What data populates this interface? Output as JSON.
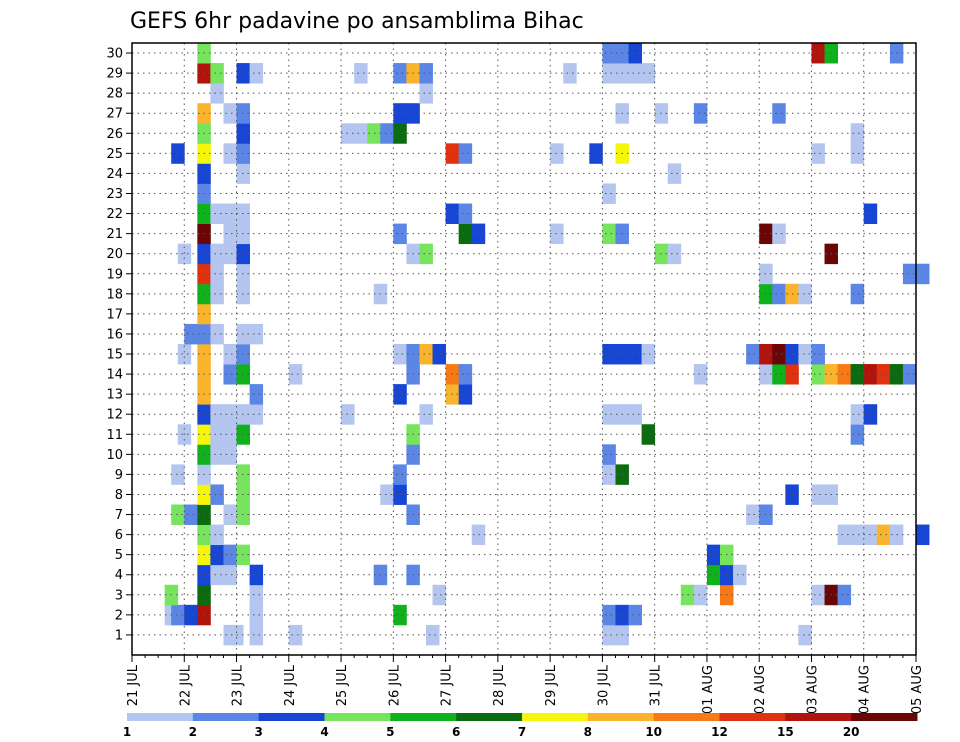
{
  "chart_data": {
    "type": "heatmap",
    "title": "GEFS 6hr padavine po ansamblima Bihac",
    "x_labels": [
      "21 JUL",
      "22 JUL",
      "23 JUL",
      "24 JUL",
      "25 JUL",
      "26 JUL",
      "27 JUL",
      "28 JUL",
      "29 JUL",
      "30 JUL",
      "31 JUL",
      "01 AUG",
      "02 AUG",
      "03 AUG",
      "04 AUG",
      "05 AUG"
    ],
    "y_labels": [
      "1",
      "2",
      "3",
      "4",
      "5",
      "6",
      "7",
      "8",
      "9",
      "10",
      "11",
      "12",
      "13",
      "14",
      "15",
      "16",
      "17",
      "18",
      "19",
      "20",
      "21",
      "22",
      "23",
      "24",
      "25",
      "26",
      "27",
      "28",
      "29",
      "30"
    ],
    "x_steps": 60,
    "steps_per_day": 4,
    "grid": true,
    "legend": {
      "position": "bottom",
      "labels": [
        "1",
        "2",
        "3",
        "4",
        "5",
        "6",
        "7",
        "8",
        "10",
        "12",
        "15",
        "20"
      ],
      "colors": [
        "#b4c6ef",
        "#5b86e6",
        "#1846d4",
        "#77e45e",
        "#10b21c",
        "#0b6b10",
        "#f6f60a",
        "#fab42c",
        "#f77a14",
        "#e0320f",
        "#b1140c",
        "#6b0606"
      ]
    },
    "cells": [
      [
        0,
        "22JUL",
        3,
        0
      ],
      [
        0,
        "22JUL",
        3.5,
        0
      ],
      [
        0,
        "23JUL",
        1,
        0
      ],
      [
        0,
        "23JUL",
        4,
        0
      ],
      [
        0,
        "26JUL",
        2.5,
        0
      ],
      [
        0,
        "30JUL",
        0,
        0
      ],
      [
        0,
        "30JUL",
        1,
        0
      ],
      [
        0,
        "02AUG",
        3,
        0
      ],
      [
        1,
        "21JUL",
        2.5,
        0
      ],
      [
        1,
        "21JUL",
        3,
        1
      ],
      [
        1,
        "22JUL",
        0,
        2
      ],
      [
        1,
        "22JUL",
        1,
        10
      ],
      [
        1,
        "23JUL",
        1,
        0
      ],
      [
        1,
        "26JUL",
        0,
        4
      ],
      [
        1,
        "30JUL",
        0,
        1
      ],
      [
        1,
        "30JUL",
        1,
        2
      ],
      [
        1,
        "30JUL",
        2,
        1
      ],
      [
        2,
        "21JUL",
        2.5,
        3
      ],
      [
        2,
        "22JUL",
        1,
        5
      ],
      [
        2,
        "23JUL",
        1,
        0
      ],
      [
        2,
        "26JUL",
        3,
        0
      ],
      [
        2,
        "31JUL",
        2,
        3
      ],
      [
        2,
        "31JUL",
        3,
        0
      ],
      [
        2,
        "01AUG",
        1,
        8
      ],
      [
        2,
        "03AUG",
        0,
        0
      ],
      [
        2,
        "03AUG",
        1,
        11
      ],
      [
        2,
        "03AUG",
        2,
        1
      ],
      [
        3,
        "22JUL",
        1,
        2
      ],
      [
        3,
        "22JUL",
        2,
        0
      ],
      [
        3,
        "22JUL",
        3,
        0
      ],
      [
        3,
        "23JUL",
        1,
        2
      ],
      [
        3,
        "25JUL",
        2.5,
        1
      ],
      [
        3,
        "26JUL",
        1,
        1
      ],
      [
        3,
        "01AUG",
        0,
        4
      ],
      [
        3,
        "01AUG",
        1,
        2
      ],
      [
        3,
        "01AUG",
        2,
        0
      ],
      [
        4,
        "22JUL",
        1,
        6
      ],
      [
        4,
        "22JUL",
        2,
        2
      ],
      [
        4,
        "22JUL",
        3,
        1
      ],
      [
        4,
        "23JUL",
        0,
        3
      ],
      [
        4,
        "01AUG",
        0,
        2
      ],
      [
        4,
        "01AUG",
        1,
        3
      ],
      [
        5,
        "22JUL",
        1,
        3
      ],
      [
        5,
        "22JUL",
        2,
        0
      ],
      [
        5,
        "27JUL",
        2,
        0
      ],
      [
        5,
        "03AUG",
        2,
        0
      ],
      [
        5,
        "03AUG",
        3,
        0
      ],
      [
        5,
        "03AUG",
        4,
        0
      ],
      [
        5,
        "03AUG",
        5,
        7
      ],
      [
        5,
        "03AUG",
        6,
        0
      ],
      [
        5,
        "05AUG",
        0,
        2
      ],
      [
        6,
        "21JUL",
        3,
        3
      ],
      [
        6,
        "22JUL",
        0,
        1
      ],
      [
        6,
        "22JUL",
        1,
        5
      ],
      [
        6,
        "22JUL",
        3,
        0
      ],
      [
        6,
        "23JUL",
        0,
        3
      ],
      [
        6,
        "26JUL",
        1,
        1
      ],
      [
        6,
        "01AUG",
        3,
        0
      ],
      [
        6,
        "02AUG",
        0,
        1
      ],
      [
        7,
        "22JUL",
        1,
        6
      ],
      [
        7,
        "22JUL",
        2,
        1
      ],
      [
        7,
        "22JUL",
        4,
        0
      ],
      [
        7,
        "23JUL",
        0,
        3
      ],
      [
        7,
        "25JUL",
        3,
        0
      ],
      [
        7,
        "25JUL",
        4,
        0
      ],
      [
        7,
        "26JUL",
        0,
        2
      ],
      [
        7,
        "02AUG",
        2,
        2
      ],
      [
        7,
        "03AUG",
        0,
        0
      ],
      [
        7,
        "03AUG",
        1,
        0
      ],
      [
        8,
        "21JUL",
        3,
        0
      ],
      [
        8,
        "22JUL",
        1,
        0
      ],
      [
        8,
        "23JUL",
        0,
        3
      ],
      [
        8,
        "26JUL",
        0,
        1
      ],
      [
        8,
        "30JUL",
        0,
        0
      ],
      [
        8,
        "30JUL",
        1,
        5
      ],
      [
        9,
        "22JUL",
        1,
        4
      ],
      [
        9,
        "22JUL",
        2,
        0
      ],
      [
        9,
        "22JUL",
        3,
        0
      ],
      [
        9,
        "26JUL",
        1,
        1
      ],
      [
        9,
        "30JUL",
        0,
        1
      ],
      [
        10,
        "21JUL",
        3.5,
        0
      ],
      [
        10,
        "22JUL",
        1,
        6
      ],
      [
        10,
        "22JUL",
        2,
        0
      ],
      [
        10,
        "22JUL",
        3,
        0
      ],
      [
        10,
        "23JUL",
        0,
        4
      ],
      [
        10,
        "26JUL",
        1,
        3
      ],
      [
        10,
        "30JUL",
        3,
        5
      ],
      [
        10,
        "03AUG",
        3,
        1
      ],
      [
        11,
        "22JUL",
        1,
        2
      ],
      [
        11,
        "22JUL",
        2,
        0
      ],
      [
        11,
        "22JUL",
        3,
        0
      ],
      [
        11,
        "23JUL",
        0,
        0
      ],
      [
        11,
        "23JUL",
        1,
        0
      ],
      [
        11,
        "25JUL",
        0,
        0
      ],
      [
        11,
        "26JUL",
        2,
        0
      ],
      [
        11,
        "30JUL",
        0,
        0
      ],
      [
        11,
        "30JUL",
        1,
        0
      ],
      [
        11,
        "30JUL",
        2,
        0
      ],
      [
        11,
        "03AUG",
        3,
        0
      ],
      [
        11,
        "04AUG",
        0,
        2
      ],
      [
        12,
        "22JUL",
        1,
        7
      ],
      [
        12,
        "23JUL",
        1,
        1
      ],
      [
        12,
        "26JUL",
        0,
        2
      ],
      [
        12,
        "27JUL",
        0,
        7
      ],
      [
        12,
        "27JUL",
        1,
        2
      ],
      [
        13,
        "22JUL",
        1,
        7
      ],
      [
        13,
        "22JUL",
        3,
        1
      ],
      [
        13,
        "22JUL",
        4,
        1
      ],
      [
        13,
        "23JUL",
        0,
        4
      ],
      [
        13,
        "24JUL",
        0,
        0
      ],
      [
        13,
        "26JUL",
        1,
        1
      ],
      [
        13,
        "27JUL",
        0,
        8
      ],
      [
        13,
        "27JUL",
        1,
        1
      ],
      [
        13,
        "31JUL",
        3,
        0
      ],
      [
        13,
        "02AUG",
        0,
        0
      ],
      [
        13,
        "02AUG",
        1,
        4
      ],
      [
        13,
        "02AUG",
        2,
        9
      ],
      [
        13,
        "03AUG",
        0,
        3
      ],
      [
        13,
        "03AUG",
        1,
        7
      ],
      [
        13,
        "03AUG",
        2,
        8
      ],
      [
        13,
        "03AUG",
        3,
        5
      ],
      [
        13,
        "04AUG",
        0,
        10
      ],
      [
        13,
        "04AUG",
        1,
        9
      ],
      [
        13,
        "04AUG",
        2,
        5
      ],
      [
        13,
        "04AUG",
        3,
        1
      ],
      [
        14,
        "21JUL",
        3.5,
        0
      ],
      [
        14,
        "22JUL",
        1,
        7
      ],
      [
        14,
        "22JUL",
        3,
        0
      ],
      [
        14,
        "23JUL",
        0,
        1
      ],
      [
        14,
        "26JUL",
        0,
        0
      ],
      [
        14,
        "26JUL",
        1,
        1
      ],
      [
        14,
        "26JUL",
        2,
        7
      ],
      [
        14,
        "26JUL",
        3,
        2
      ],
      [
        14,
        "30JUL",
        0,
        2
      ],
      [
        14,
        "30JUL",
        1,
        2
      ],
      [
        14,
        "30JUL",
        2,
        2
      ],
      [
        14,
        "30JUL",
        3,
        0
      ],
      [
        14,
        "01AUG",
        3,
        1
      ],
      [
        14,
        "02AUG",
        0,
        10
      ],
      [
        14,
        "02AUG",
        1,
        11
      ],
      [
        14,
        "02AUG",
        2,
        2
      ],
      [
        14,
        "02AUG",
        3,
        0
      ],
      [
        14,
        "02AUG",
        4,
        1
      ],
      [
        15,
        "22JUL",
        0,
        1
      ],
      [
        15,
        "22JUL",
        1,
        1
      ],
      [
        15,
        "22JUL",
        2,
        0
      ],
      [
        15,
        "23JUL",
        0,
        0
      ],
      [
        15,
        "23JUL",
        1,
        0
      ],
      [
        16,
        "22JUL",
        1,
        7
      ],
      [
        17,
        "22JUL",
        1,
        4
      ],
      [
        17,
        "22JUL",
        2,
        0
      ],
      [
        17,
        "23JUL",
        0,
        0
      ],
      [
        17,
        "25JUL",
        2.5,
        0
      ],
      [
        17,
        "02AUG",
        0,
        4
      ],
      [
        17,
        "02AUG",
        1,
        1
      ],
      [
        17,
        "02AUG",
        2,
        7
      ],
      [
        17,
        "02AUG",
        3,
        0
      ],
      [
        17,
        "03AUG",
        3,
        1
      ],
      [
        18,
        "22JUL",
        1,
        9
      ],
      [
        18,
        "22JUL",
        2,
        0
      ],
      [
        18,
        "23JUL",
        0,
        0
      ],
      [
        18,
        "02AUG",
        0,
        0
      ],
      [
        18,
        "04AUG",
        3,
        1
      ],
      [
        18,
        "05AUG",
        0,
        1
      ],
      [
        19,
        "21JUL",
        3.5,
        0
      ],
      [
        19,
        "22JUL",
        1,
        2
      ],
      [
        19,
        "22JUL",
        2,
        0
      ],
      [
        19,
        "22JUL",
        3,
        0
      ],
      [
        19,
        "23JUL",
        0,
        2
      ],
      [
        19,
        "26JUL",
        1,
        0
      ],
      [
        19,
        "26JUL",
        2,
        3
      ],
      [
        19,
        "31JUL",
        0,
        3
      ],
      [
        19,
        "31JUL",
        1,
        0
      ],
      [
        19,
        "03AUG",
        1,
        11
      ],
      [
        20,
        "22JUL",
        1,
        11
      ],
      [
        20,
        "22JUL",
        3,
        0
      ],
      [
        20,
        "23JUL",
        0,
        0
      ],
      [
        20,
        "26JUL",
        0,
        1
      ],
      [
        20,
        "27JUL",
        1,
        5
      ],
      [
        20,
        "27JUL",
        2,
        2
      ],
      [
        20,
        "29JUL",
        0,
        0
      ],
      [
        20,
        "30JUL",
        0,
        3
      ],
      [
        20,
        "30JUL",
        1,
        1
      ],
      [
        20,
        "02AUG",
        0,
        11
      ],
      [
        20,
        "02AUG",
        1,
        0
      ],
      [
        21,
        "22JUL",
        1,
        4
      ],
      [
        21,
        "22JUL",
        2,
        0
      ],
      [
        21,
        "22JUL",
        3,
        0
      ],
      [
        21,
        "23JUL",
        0,
        0
      ],
      [
        21,
        "27JUL",
        0,
        2
      ],
      [
        21,
        "27JUL",
        1,
        1
      ],
      [
        21,
        "04AUG",
        0,
        2
      ],
      [
        22,
        "22JUL",
        1,
        1
      ],
      [
        22,
        "30JUL",
        0,
        0
      ],
      [
        23,
        "22JUL",
        1,
        2
      ],
      [
        23,
        "23JUL",
        0,
        0
      ],
      [
        23,
        "31JUL",
        1,
        0
      ],
      [
        24,
        "21JUL",
        3,
        2
      ],
      [
        24,
        "22JUL",
        1,
        6
      ],
      [
        24,
        "22JUL",
        3,
        0
      ],
      [
        24,
        "23JUL",
        0,
        1
      ],
      [
        24,
        "27JUL",
        0,
        9
      ],
      [
        24,
        "27JUL",
        1,
        1
      ],
      [
        24,
        "29JUL",
        0,
        0
      ],
      [
        24,
        "29JUL",
        3,
        2
      ],
      [
        24,
        "30JUL",
        1,
        6
      ],
      [
        24,
        "03AUG",
        0,
        0
      ],
      [
        24,
        "03AUG",
        3,
        0
      ],
      [
        25,
        "22JUL",
        1,
        3
      ],
      [
        25,
        "23JUL",
        0,
        2
      ],
      [
        25,
        "25JUL",
        0,
        0
      ],
      [
        25,
        "25JUL",
        1,
        0
      ],
      [
        25,
        "25JUL",
        2,
        3
      ],
      [
        25,
        "25JUL",
        3,
        1
      ],
      [
        25,
        "26JUL",
        0,
        5
      ],
      [
        25,
        "03AUG",
        3,
        0
      ],
      [
        26,
        "22JUL",
        1,
        7
      ],
      [
        26,
        "22JUL",
        3,
        0
      ],
      [
        26,
        "23JUL",
        0,
        1
      ],
      [
        26,
        "26JUL",
        0,
        2
      ],
      [
        26,
        "26JUL",
        1,
        2
      ],
      [
        26,
        "30JUL",
        1,
        0
      ],
      [
        26,
        "31JUL",
        0,
        0
      ],
      [
        26,
        "31JUL",
        3,
        1
      ],
      [
        26,
        "02AUG",
        1,
        1
      ],
      [
        27,
        "22JUL",
        2,
        0
      ],
      [
        27,
        "26JUL",
        2,
        0
      ],
      [
        28,
        "22JUL",
        1,
        10
      ],
      [
        28,
        "22JUL",
        2,
        3
      ],
      [
        28,
        "23JUL",
        0,
        2
      ],
      [
        28,
        "23JUL",
        1,
        0
      ],
      [
        28,
        "25JUL",
        1,
        0
      ],
      [
        28,
        "26JUL",
        0,
        1
      ],
      [
        28,
        "26JUL",
        1,
        7
      ],
      [
        28,
        "26JUL",
        2,
        1
      ],
      [
        28,
        "29JUL",
        1,
        0
      ],
      [
        28,
        "30JUL",
        0,
        0
      ],
      [
        28,
        "30JUL",
        1,
        0
      ],
      [
        28,
        "30JUL",
        2,
        0
      ],
      [
        28,
        "30JUL",
        3,
        0
      ],
      [
        29,
        "22JUL",
        1,
        3
      ],
      [
        29,
        "30JUL",
        0,
        1
      ],
      [
        29,
        "30JUL",
        1,
        1
      ],
      [
        29,
        "30JUL",
        2,
        2
      ],
      [
        29,
        "03AUG",
        0,
        10
      ],
      [
        29,
        "03AUG",
        1,
        4
      ],
      [
        29,
        "04AUG",
        2,
        1
      ]
    ]
  }
}
